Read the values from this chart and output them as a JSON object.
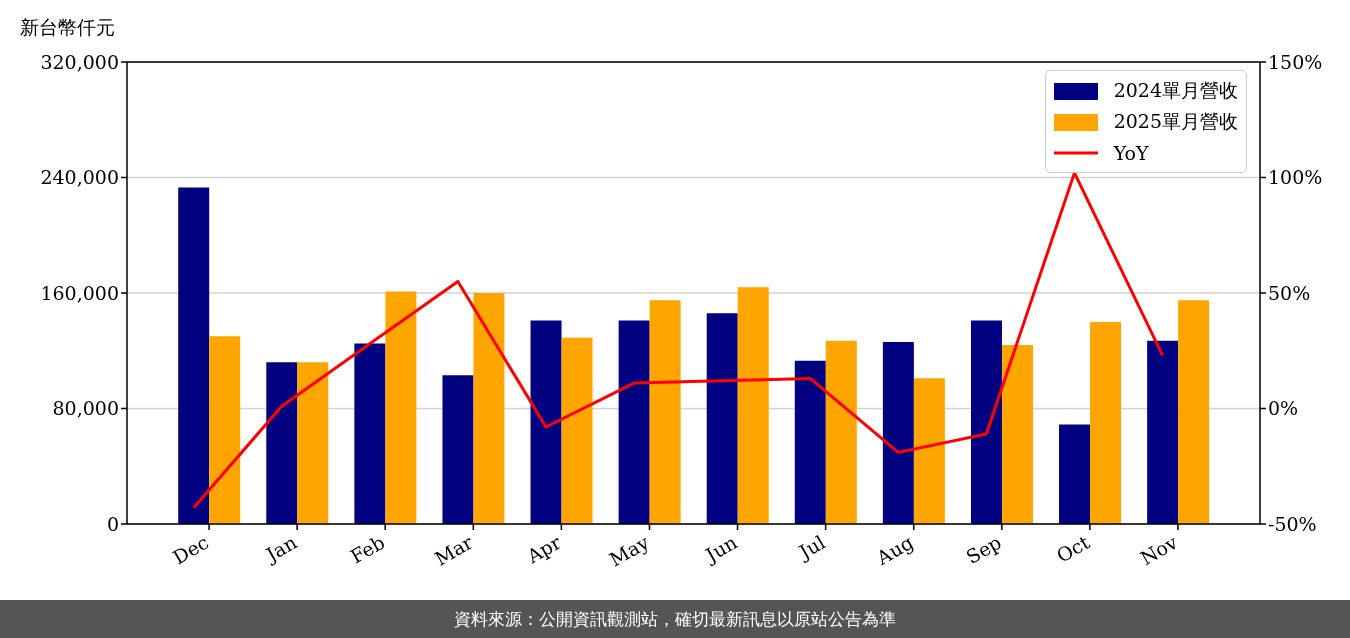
{
  "chart_data": {
    "type": "bar",
    "ylabel": "新台幣仟元",
    "categories": [
      "Dec",
      "Jan",
      "Feb",
      "Mar",
      "Apr",
      "May",
      "Jun",
      "Jul",
      "Aug",
      "Sep",
      "Oct",
      "Nov"
    ],
    "series": [
      {
        "name": "2024單月營收",
        "color": "#000080",
        "values": [
          233000,
          112000,
          125000,
          103000,
          141000,
          141000,
          146000,
          113000,
          126000,
          141000,
          69000,
          127000
        ]
      },
      {
        "name": "2025單月營收",
        "color": "#ffa500",
        "values": [
          130000,
          112000,
          161000,
          160000,
          129000,
          155000,
          164000,
          127000,
          101000,
          124000,
          140000,
          155000
        ]
      },
      {
        "name": "YoY",
        "type": "line",
        "axis": "y2",
        "color": "#ff0000",
        "values": [
          -43,
          1,
          28,
          55,
          -8,
          11,
          12,
          13,
          -19,
          -11,
          102,
          23
        ]
      }
    ],
    "ylim": [
      0,
      320000
    ],
    "yticks": [
      {
        "value": 0,
        "label": "0"
      },
      {
        "value": 80000,
        "label": "80,000"
      },
      {
        "value": 160000,
        "label": "160,000"
      },
      {
        "value": 240000,
        "label": "240,000"
      },
      {
        "value": 320000,
        "label": "320,000"
      }
    ],
    "y2lim": [
      -50,
      150
    ],
    "y2ticks": [
      {
        "value": -50,
        "label": "-50%"
      },
      {
        "value": 0,
        "label": "0%"
      },
      {
        "value": 50,
        "label": "50%"
      },
      {
        "value": 100,
        "label": "100%"
      },
      {
        "value": 150,
        "label": "150%"
      }
    ],
    "grid": "y",
    "legend": "top right",
    "marker": "none",
    "line_style": "solid",
    "annotations": [
      "資料來源：公開資訊觀測站，確切最新訊息以原站公告為準"
    ]
  }
}
